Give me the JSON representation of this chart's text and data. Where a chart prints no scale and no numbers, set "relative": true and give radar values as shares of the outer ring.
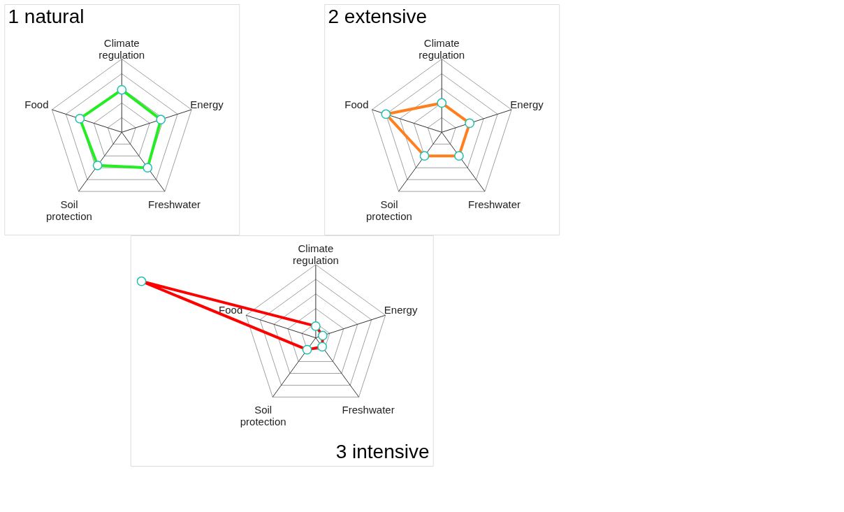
{
  "chart_data": [
    {
      "type": "radar",
      "title": "1 natural",
      "relative": true,
      "categories": [
        "Climate regulation",
        "Energy",
        "Freshwater",
        "Soil protection",
        "Food"
      ],
      "series": [
        {
          "color": "#22ee22",
          "values": [
            0.58,
            0.56,
            0.6,
            0.56,
            0.6
          ]
        }
      ],
      "marker": "circle"
    },
    {
      "type": "radar",
      "title": "2 extensive",
      "relative": true,
      "categories": [
        "Climate regulation",
        "Energy",
        "Freshwater",
        "Soil protection",
        "Food"
      ],
      "series": [
        {
          "color": "#ff7f1e",
          "values": [
            0.4,
            0.4,
            0.4,
            0.4,
            0.8
          ]
        }
      ],
      "marker": "circle"
    },
    {
      "type": "radar",
      "title": "3 intensive",
      "relative": true,
      "categories": [
        "Climate regulation",
        "Energy",
        "Freshwater",
        "Soil protection",
        "Food"
      ],
      "series": [
        {
          "color": "#ff0000",
          "values": [
            0.16,
            0.1,
            0.15,
            0.2,
            2.5
          ]
        }
      ],
      "marker": "circle"
    }
  ]
}
